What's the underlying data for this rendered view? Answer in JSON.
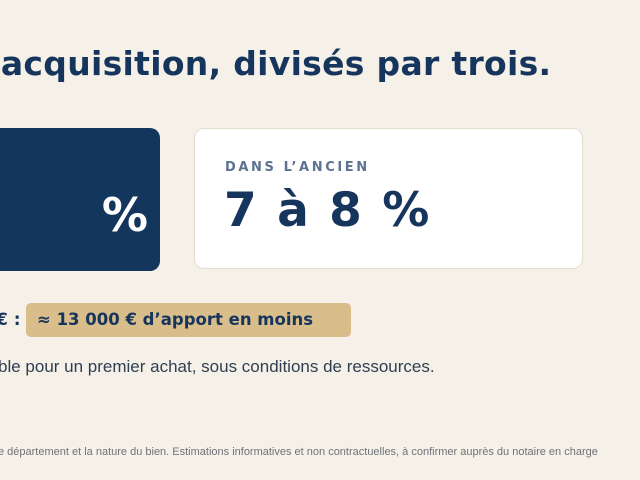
{
  "headline": "’acquisition, divisés par trois.",
  "card_new": {
    "value": "%"
  },
  "card_old": {
    "label": "DANS L’ANCIEN",
    "value": "7 à 8 %"
  },
  "apport": {
    "prefix": "€ :",
    "badge": "≈ 13 000 € d’apport en moins"
  },
  "conditions_text": "ble pour un premier achat, sous conditions de ressources.",
  "footnote": "e département et la nature du bien. Estimations informatives et non contractuelles, à confirmer auprès du notaire en charge"
}
